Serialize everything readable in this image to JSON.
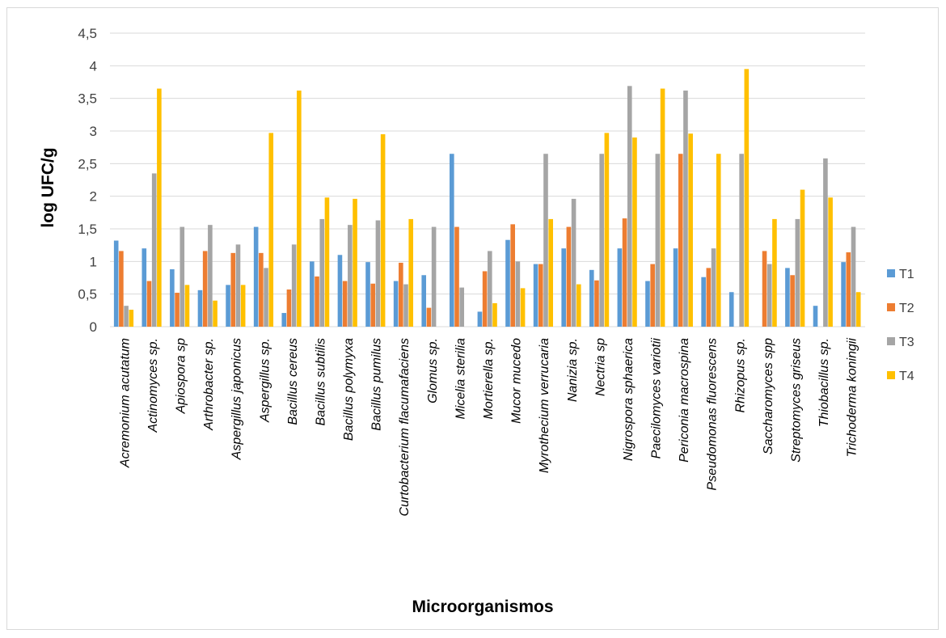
{
  "chart_data": {
    "type": "bar",
    "title": "",
    "xlabel": "Microorganismos",
    "ylabel": "log UFC/g",
    "ylim": [
      0,
      4.5
    ],
    "yticks": [
      "0",
      "0,5",
      "1",
      "1,5",
      "2",
      "2,5",
      "3",
      "3,5",
      "4",
      "4,5"
    ],
    "grid": true,
    "legend_position": "right",
    "categories": [
      "Acremonium acutatum",
      "Actinomyces  sp.",
      "Apiospora  sp",
      "Arthrobacter  sp.",
      "Aspergillus japonicus",
      "Aspergillus  sp.",
      "Bacillus cereus",
      "Bacillus  subtilis",
      "Bacillus polymyxa",
      "Bacillus pumilus",
      "Curtobacterium flacumafaciens",
      "Glomus  sp.",
      "Micelia sterilia",
      "Mortierella sp.",
      "Mucor mucedo",
      "Myrothecium verrucaria",
      "Nanizia sp.",
      "Nectria sp",
      "Nigrospora sphaerica",
      "Paecilomyces variotii",
      "Periconia macrospina",
      "Pseudomonas  fluorescens",
      "Rhizopus  sp.",
      "Saccharomyces  spp",
      "Streptomyces griseus",
      "Thiobacillus  sp.",
      "Trichoderma koningii"
    ],
    "series": [
      {
        "name": "T1",
        "color": "#5b9bd5",
        "values": [
          1.32,
          1.2,
          0.88,
          0.56,
          0.64,
          1.53,
          0.21,
          1.0,
          1.1,
          0.99,
          0.7,
          0.79,
          2.65,
          0.23,
          1.33,
          0.96,
          1.2,
          0.87,
          1.2,
          0.7,
          1.2,
          0.76,
          0.53,
          0.0,
          0.9,
          0.32,
          0.99
        ]
      },
      {
        "name": "T2",
        "color": "#ed7d31",
        "values": [
          1.16,
          0.7,
          0.52,
          1.16,
          1.13,
          1.13,
          0.57,
          0.77,
          0.7,
          0.66,
          0.98,
          0.29,
          1.53,
          0.85,
          1.57,
          0.96,
          1.53,
          0.71,
          1.66,
          0.96,
          2.65,
          0.9,
          0.0,
          1.16,
          0.79,
          0.0,
          1.14
        ]
      },
      {
        "name": "T3",
        "color": "#a5a5a5",
        "values": [
          0.32,
          2.35,
          1.53,
          1.56,
          1.26,
          0.9,
          1.26,
          1.65,
          1.56,
          1.63,
          0.65,
          1.53,
          0.6,
          1.16,
          1.0,
          2.65,
          1.96,
          2.65,
          3.69,
          2.65,
          3.62,
          1.2,
          2.65,
          0.96,
          1.65,
          2.58,
          1.53
        ]
      },
      {
        "name": "T4",
        "color": "#ffc000",
        "values": [
          0.26,
          3.65,
          0.64,
          0.4,
          0.64,
          2.97,
          3.62,
          1.98,
          1.96,
          2.95,
          1.65,
          0.0,
          0.0,
          0.36,
          0.59,
          1.65,
          0.65,
          2.97,
          2.9,
          3.65,
          2.96,
          2.65,
          3.95,
          1.65,
          2.1,
          1.98,
          0.53
        ]
      }
    ]
  }
}
